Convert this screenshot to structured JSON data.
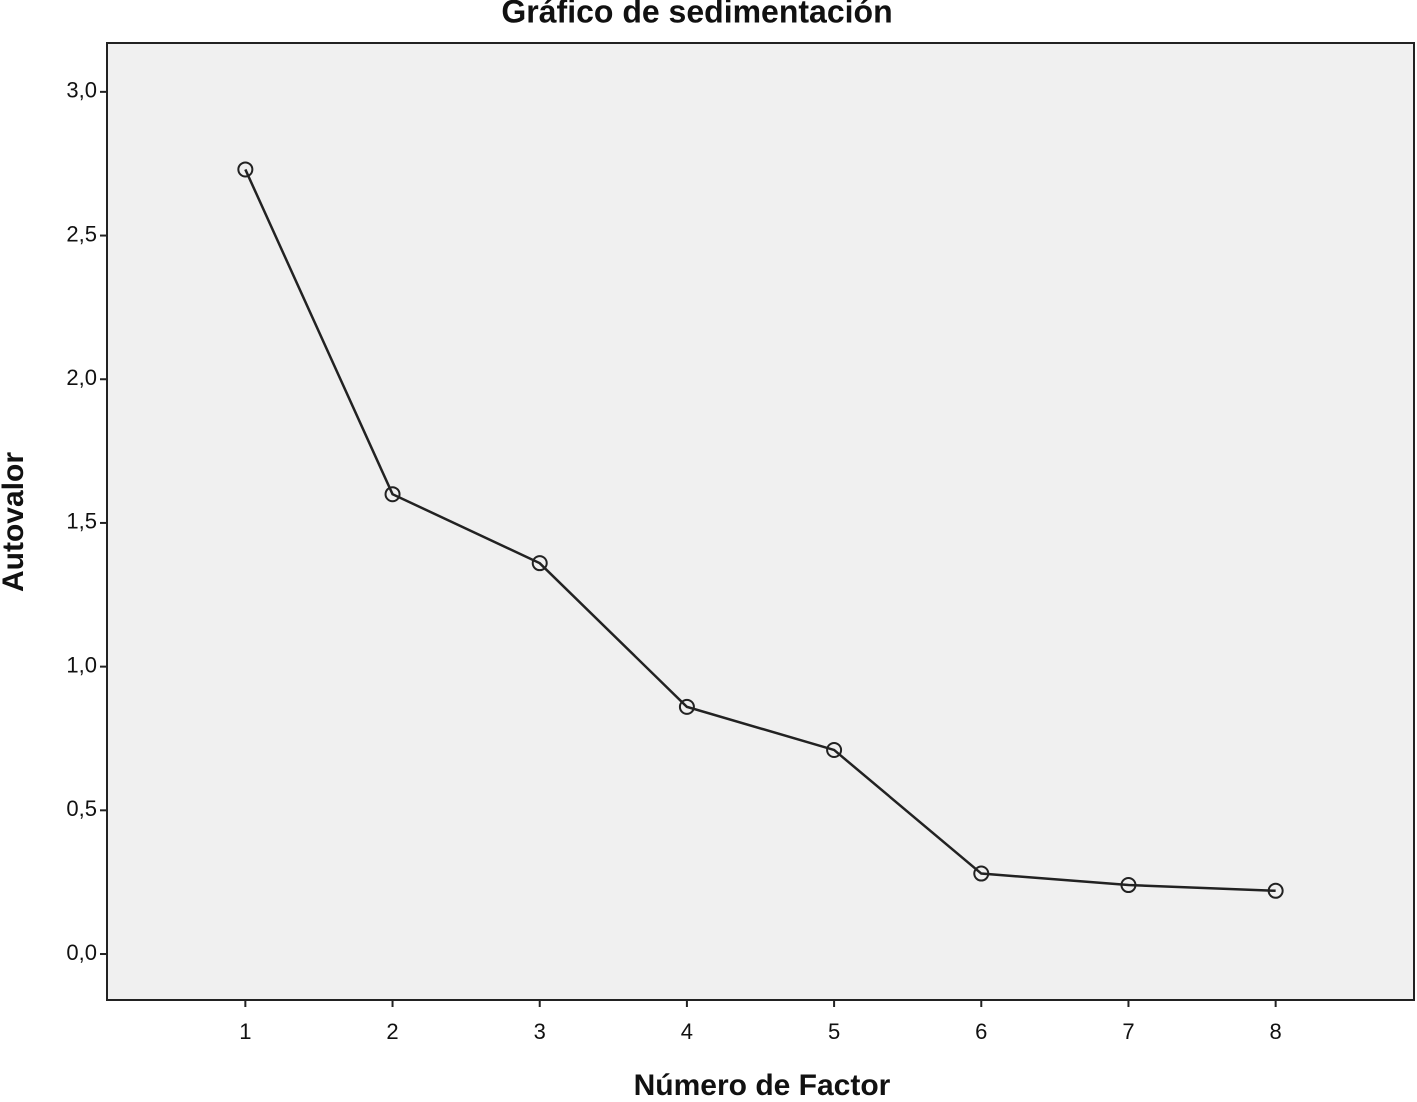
{
  "chart_data": {
    "type": "line",
    "title": "Gráfico de sedimentación",
    "x_label": "Número de Factor",
    "y_label": "Autovalor",
    "x": [
      1,
      2,
      3,
      4,
      5,
      6,
      7,
      8
    ],
    "values": [
      2.73,
      1.6,
      1.36,
      0.86,
      0.71,
      0.28,
      0.24,
      0.22
    ],
    "color": "#222222",
    "background": "#f0f0f0",
    "marker": "circle",
    "xlim": [
      0.06,
      8.94
    ],
    "xticks": [
      1,
      2,
      3,
      4,
      5,
      6,
      7,
      8
    ],
    "ylim": [
      -0.16,
      3.17
    ],
    "yticks": [
      {
        "value": 0,
        "label": "0,0"
      },
      {
        "value": 0.5,
        "label": "0,5"
      },
      {
        "value": 1,
        "label": "1,0"
      },
      {
        "value": 1.5,
        "label": "1,5"
      },
      {
        "value": 2,
        "label": "2,0"
      },
      {
        "value": 2.5,
        "label": "2,5"
      },
      {
        "value": 3,
        "label": "3,0"
      }
    ],
    "grid": false
  }
}
